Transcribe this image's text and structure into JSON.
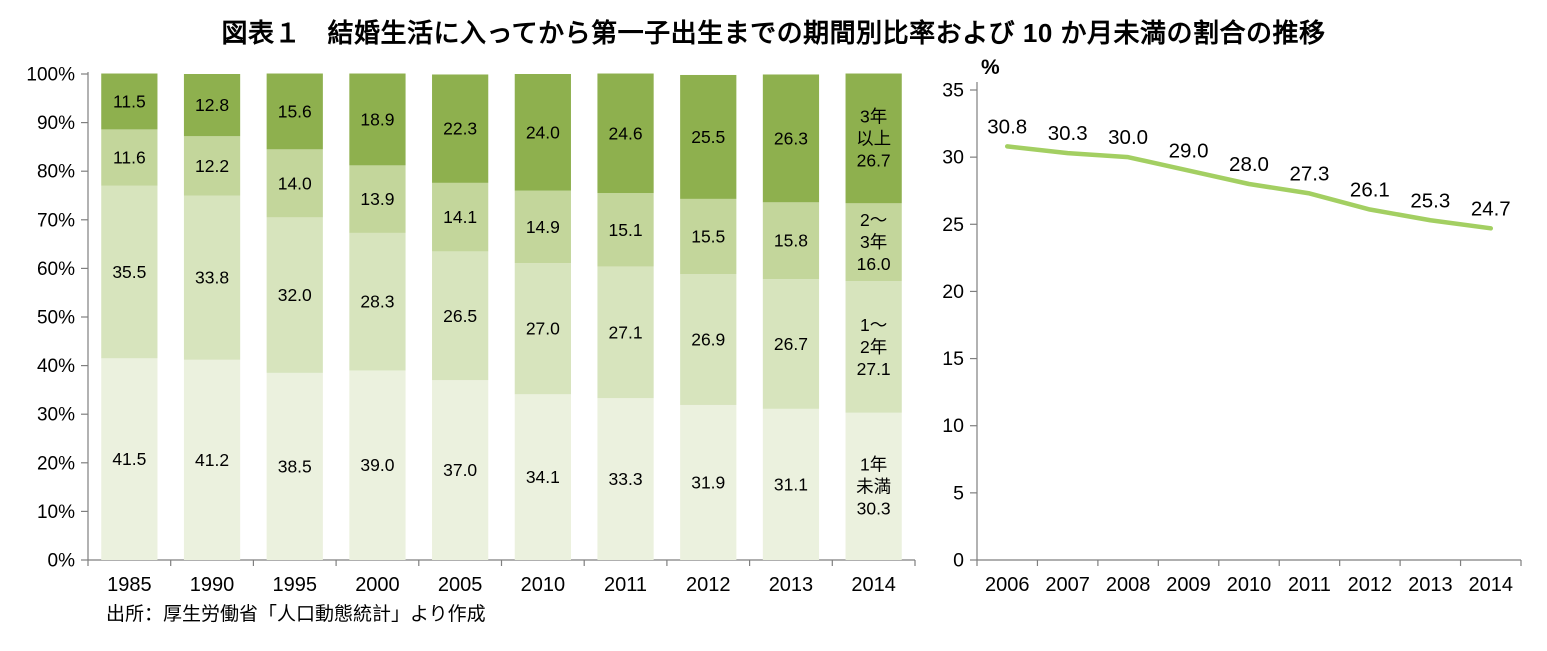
{
  "title": "図表１　結婚生活に入ってから第一子出生までの期間別比率および 10 か月未満の割合の推移",
  "source_note": "出所：厚生労働省「人口動態統計」より作成",
  "chart_data": [
    {
      "type": "bar",
      "stacked": true,
      "percent": true,
      "title": "結婚生活に入ってから第一子出生までの期間別比率",
      "categories": [
        "1985",
        "1990",
        "1995",
        "2000",
        "2005",
        "2010",
        "2011",
        "2012",
        "2013",
        "2014"
      ],
      "series": [
        {
          "name": "1年未満",
          "label_lines": [
            "1年",
            "未満"
          ],
          "color": "#ebf1de",
          "values": [
            41.5,
            41.2,
            38.5,
            39.0,
            37.0,
            34.1,
            33.3,
            31.9,
            31.1,
            30.3
          ]
        },
        {
          "name": "1〜2年",
          "label_lines": [
            "1〜",
            "2年"
          ],
          "color": "#d7e4bd",
          "values": [
            35.5,
            33.8,
            32.0,
            28.3,
            26.5,
            27.0,
            27.1,
            26.9,
            26.7,
            27.1
          ]
        },
        {
          "name": "2〜3年",
          "label_lines": [
            "2〜",
            "3年"
          ],
          "color": "#c3d69b",
          "values": [
            11.6,
            12.2,
            14.0,
            13.9,
            14.1,
            14.9,
            15.1,
            15.5,
            15.8,
            16.0
          ]
        },
        {
          "name": "3年以上",
          "label_lines": [
            "3年",
            "以上"
          ],
          "color": "#8eb04e",
          "values": [
            11.5,
            12.8,
            15.6,
            18.9,
            22.3,
            24.0,
            24.6,
            25.5,
            26.3,
            26.7
          ]
        }
      ],
      "ylim": [
        0,
        100
      ],
      "ytick_step": 10,
      "ytick_suffix": "%",
      "grid": false,
      "legend": "none",
      "axis_color": "#7f7f7f"
    },
    {
      "type": "line",
      "title": "10か月未満の割合の推移",
      "x": [
        "2006",
        "2007",
        "2008",
        "2009",
        "2010",
        "2011",
        "2012",
        "2013",
        "2014"
      ],
      "values": [
        30.8,
        30.3,
        30.0,
        29.0,
        28.0,
        27.3,
        26.1,
        25.3,
        24.7
      ],
      "ylim": [
        0,
        35
      ],
      "ytick_step": 5,
      "unit_label": "%",
      "color": "#a3cf62",
      "grid": false,
      "legend": "none",
      "axis_color": "#7f7f7f"
    }
  ]
}
